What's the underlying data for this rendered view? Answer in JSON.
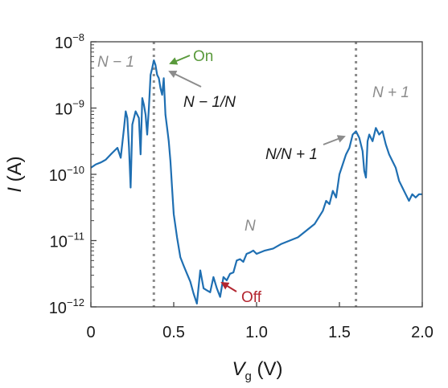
{
  "chart_data": {
    "type": "line",
    "title": "",
    "xlabel": {
      "main": "V",
      "sub": "g",
      "unit": " (V)"
    },
    "ylabel": {
      "main": "I",
      "unit": " (A)"
    },
    "xlim": [
      0,
      2.0
    ],
    "ylim_log10": [
      -12,
      -8
    ],
    "y_scale": "log",
    "grid": false,
    "x_ticks": [
      {
        "value": 0,
        "label": "0"
      },
      {
        "value": 0.5,
        "label": "0.5"
      },
      {
        "value": 1.0,
        "label": "1.0"
      },
      {
        "value": 1.5,
        "label": "1.5"
      },
      {
        "value": 2.0,
        "label": "2.0"
      }
    ],
    "y_ticks": [
      {
        "exp": -8,
        "base": "10",
        "sup": "−8"
      },
      {
        "exp": -9,
        "base": "10",
        "sup": "−9"
      },
      {
        "exp": -10,
        "base": "10",
        "sup": "−10"
      },
      {
        "exp": -11,
        "base": "10",
        "sup": "−11"
      },
      {
        "exp": -12,
        "base": "10",
        "sup": "−12"
      }
    ],
    "vlines": [
      {
        "x": 0.38,
        "style": "dotted",
        "color": "#8c8c8c"
      },
      {
        "x": 1.6,
        "style": "dotted",
        "color": "#8c8c8c"
      }
    ],
    "series": [
      {
        "color": "#1f6fb2",
        "x": [
          0.0,
          0.03,
          0.06,
          0.09,
          0.12,
          0.14,
          0.16,
          0.18,
          0.2,
          0.21,
          0.22,
          0.23,
          0.24,
          0.25,
          0.27,
          0.29,
          0.3,
          0.31,
          0.32,
          0.33,
          0.34,
          0.35,
          0.36,
          0.37,
          0.38,
          0.39,
          0.4,
          0.41,
          0.42,
          0.43,
          0.44,
          0.45,
          0.46,
          0.47,
          0.48,
          0.49,
          0.5,
          0.52,
          0.54,
          0.56,
          0.58,
          0.6,
          0.62,
          0.64,
          0.66,
          0.68,
          0.7,
          0.72,
          0.74,
          0.76,
          0.78,
          0.8,
          0.82,
          0.84,
          0.86,
          0.88,
          0.9,
          0.92,
          0.94,
          0.96,
          0.98,
          1.0,
          1.05,
          1.1,
          1.15,
          1.2,
          1.25,
          1.3,
          1.35,
          1.4,
          1.42,
          1.44,
          1.46,
          1.48,
          1.5,
          1.52,
          1.54,
          1.56,
          1.58,
          1.6,
          1.62,
          1.64,
          1.65,
          1.66,
          1.67,
          1.68,
          1.7,
          1.72,
          1.74,
          1.76,
          1.78,
          1.8,
          1.82,
          1.84,
          1.86,
          1.88,
          1.9,
          1.92,
          1.94,
          1.96,
          1.98,
          2.0
        ],
        "log10_y": [
          -9.9,
          -9.85,
          -9.82,
          -9.78,
          -9.7,
          -9.65,
          -9.6,
          -9.75,
          -9.3,
          -9.05,
          -9.15,
          -9.6,
          -10.2,
          -9.25,
          -9.05,
          -9.15,
          -9.7,
          -8.85,
          -8.95,
          -9.1,
          -9.4,
          -9.0,
          -8.5,
          -8.4,
          -8.28,
          -8.35,
          -8.5,
          -8.55,
          -8.7,
          -8.8,
          -8.55,
          -9.1,
          -9.3,
          -9.5,
          -9.8,
          -10.2,
          -10.6,
          -10.95,
          -11.25,
          -11.38,
          -11.5,
          -11.62,
          -11.8,
          -11.95,
          -11.45,
          -11.72,
          -11.75,
          -11.78,
          -11.55,
          -11.72,
          -11.85,
          -11.55,
          -11.6,
          -11.5,
          -11.48,
          -11.3,
          -11.28,
          -11.32,
          -11.2,
          -11.18,
          -11.15,
          -11.2,
          -11.15,
          -11.12,
          -11.05,
          -11.0,
          -10.95,
          -10.85,
          -10.75,
          -10.55,
          -10.4,
          -10.45,
          -10.25,
          -10.35,
          -10.0,
          -9.85,
          -9.7,
          -9.6,
          -9.4,
          -9.35,
          -9.45,
          -9.65,
          -9.95,
          -10.05,
          -9.5,
          -9.4,
          -9.5,
          -9.3,
          -9.4,
          -9.35,
          -9.55,
          -9.7,
          -9.8,
          -9.9,
          -10.1,
          -10.2,
          -10.3,
          -10.4,
          -10.3,
          -10.35,
          -10.3,
          -10.3
        ]
      }
    ],
    "annotations": [
      {
        "id": "n-minus-1",
        "text": "N − 1",
        "color": "#8c8c8c"
      },
      {
        "id": "n-plus-1",
        "text": "N + 1",
        "color": "#8c8c8c"
      },
      {
        "id": "n",
        "text": "N",
        "color": "#8c8c8c"
      },
      {
        "id": "on",
        "text": "On",
        "color": "#5a9a3c",
        "arrow": true
      },
      {
        "id": "off",
        "text": "Off",
        "color": "#b32630",
        "arrow": true
      },
      {
        "id": "n-minus-1-over-n",
        "text": "N − 1/N",
        "color": "#1a1a1a",
        "arrow": true,
        "arrow_color": "#8c8c8c"
      },
      {
        "id": "n-over-n-plus-1",
        "text": "N/N + 1",
        "color": "#1a1a1a",
        "arrow": true,
        "arrow_color": "#8c8c8c"
      }
    ]
  }
}
